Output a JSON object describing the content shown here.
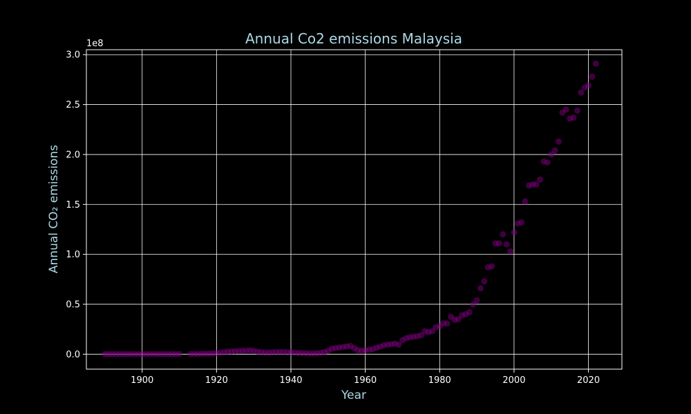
{
  "colors": {
    "background": "#000000",
    "text_accent": "#add8e6",
    "axes": "#ffffff",
    "grid": "#ffffff",
    "marker": "#800080"
  },
  "chart_data": {
    "type": "scatter",
    "title": "Annual Co2 emissions Malaysia",
    "xlabel": "Year",
    "ylabel": "Annual CO₂ emissions",
    "y_offset_label": "1e8",
    "xlim": [
      1885,
      2029
    ],
    "ylim": [
      -0.15,
      3.05
    ],
    "y_scale_note": "values in units of 1e8",
    "x_ticks": [
      {
        "value": 1900,
        "label": "1900"
      },
      {
        "value": 1920,
        "label": "1920"
      },
      {
        "value": 1940,
        "label": "1940"
      },
      {
        "value": 1960,
        "label": "1960"
      },
      {
        "value": 1980,
        "label": "1980"
      },
      {
        "value": 2000,
        "label": "2000"
      },
      {
        "value": 2020,
        "label": "2020"
      }
    ],
    "y_ticks": [
      {
        "value": 0.0,
        "label": "0.0"
      },
      {
        "value": 0.5,
        "label": "0.5"
      },
      {
        "value": 1.0,
        "label": "1.0"
      },
      {
        "value": 1.5,
        "label": "1.5"
      },
      {
        "value": 2.0,
        "label": "2.0"
      },
      {
        "value": 2.5,
        "label": "2.5"
      },
      {
        "value": 3.0,
        "label": "3.0"
      }
    ],
    "grid": true,
    "marker_alpha": 0.5,
    "series": [
      {
        "x": [
          1890,
          1891,
          1892,
          1893,
          1894,
          1895,
          1896,
          1897,
          1898,
          1899,
          1900,
          1901,
          1902,
          1903,
          1904,
          1905,
          1906,
          1907,
          1908,
          1909,
          1910,
          1913,
          1914,
          1915,
          1916,
          1917,
          1918,
          1919,
          1920,
          1921,
          1922,
          1923,
          1924,
          1925,
          1926,
          1927,
          1928,
          1929,
          1930,
          1931,
          1932,
          1933,
          1934,
          1935,
          1936,
          1937,
          1938,
          1939,
          1940,
          1941,
          1942,
          1943,
          1944,
          1945,
          1946,
          1947,
          1948,
          1949,
          1950,
          1951,
          1952,
          1953,
          1954,
          1955,
          1956,
          1957,
          1958,
          1959,
          1960,
          1961,
          1962,
          1963,
          1964,
          1965,
          1966,
          1967,
          1968,
          1969,
          1970,
          1971,
          1972,
          1973,
          1974,
          1975,
          1976,
          1977,
          1978,
          1979,
          1980,
          1981,
          1982,
          1983,
          1984,
          1985,
          1986,
          1987,
          1988,
          1989,
          1990,
          1991,
          1992,
          1993,
          1994,
          1995,
          1996,
          1997,
          1998,
          1999,
          2000,
          2001,
          2002,
          2003,
          2004,
          2005,
          2006,
          2007,
          2008,
          2009,
          2010,
          2011,
          2012,
          2013,
          2014,
          2015,
          2016,
          2017,
          2018,
          2019,
          2020,
          2021,
          2022
        ],
        "y": [
          0.001,
          0.001,
          0.001,
          0.001,
          0.001,
          0.001,
          0.001,
          0.001,
          0.001,
          0.001,
          0.001,
          0.001,
          0.001,
          0.001,
          0.001,
          0.001,
          0.001,
          0.001,
          0.001,
          0.001,
          0.002,
          0.002,
          0.002,
          0.003,
          0.004,
          0.005,
          0.006,
          0.007,
          0.01,
          0.015,
          0.02,
          0.025,
          0.028,
          0.03,
          0.032,
          0.034,
          0.035,
          0.038,
          0.033,
          0.026,
          0.02,
          0.016,
          0.017,
          0.019,
          0.021,
          0.022,
          0.022,
          0.02,
          0.019,
          0.016,
          0.013,
          0.012,
          0.01,
          0.008,
          0.007,
          0.01,
          0.014,
          0.02,
          0.035,
          0.055,
          0.062,
          0.066,
          0.072,
          0.078,
          0.082,
          0.06,
          0.04,
          0.035,
          0.04,
          0.045,
          0.05,
          0.065,
          0.075,
          0.09,
          0.095,
          0.1,
          0.105,
          0.095,
          0.14,
          0.16,
          0.17,
          0.175,
          0.18,
          0.19,
          0.23,
          0.22,
          0.23,
          0.27,
          0.28,
          0.31,
          0.305,
          0.375,
          0.345,
          0.35,
          0.39,
          0.4,
          0.42,
          0.5,
          0.54,
          0.66,
          0.73,
          0.87,
          0.88,
          1.11,
          1.11,
          1.2,
          1.1,
          1.03,
          1.22,
          1.31,
          1.32,
          1.53,
          1.69,
          1.7,
          1.7,
          1.75,
          1.93,
          1.92,
          2.0,
          2.04,
          2.13,
          2.42,
          2.45,
          2.36,
          2.37,
          2.44,
          2.62,
          2.67,
          2.69,
          2.78,
          2.91
        ]
      }
    ]
  }
}
